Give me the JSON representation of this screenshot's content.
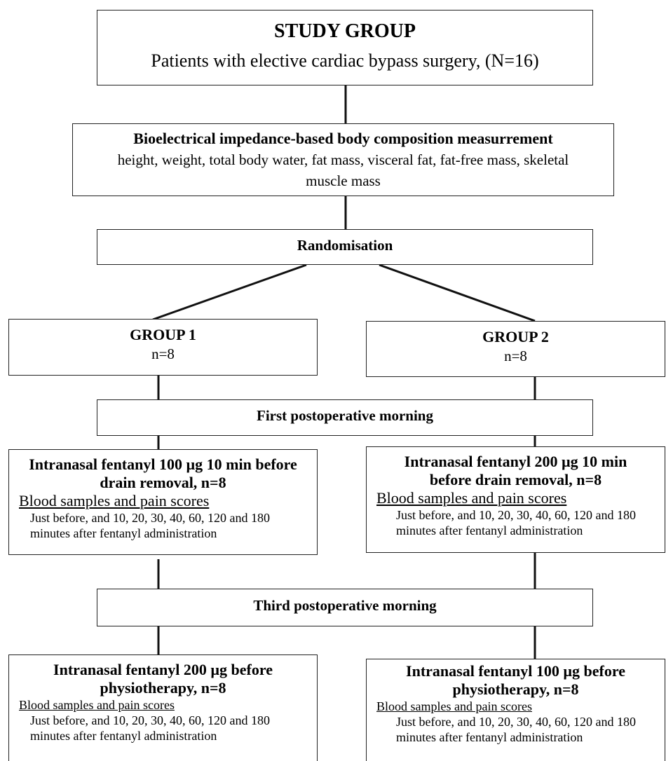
{
  "study_group": {
    "title": "STUDY GROUP",
    "text": "Patients with elective cardiac bypass surgery, (N=16)"
  },
  "measurement": {
    "title": "Bioelectrical impedance-based body composition measurrement",
    "text": "height, weight, total body water, fat mass, visceral fat, fat-free mass, skeletal muscle mass"
  },
  "randomisation": "Randomisation",
  "group_1": {
    "title": "GROUP 1",
    "n": "n=8"
  },
  "group_2": {
    "title": "GROUP 2",
    "n": "n=8"
  },
  "first_morning": "First postoperative morning",
  "group_1_first": {
    "title": "Intranasal fentanyl 100 µg 10 min before drain removal, n=8",
    "subtitle": "Blood samples and pain scores",
    "text": "Just before, and 10, 20, 30, 40, 60, 120 and 180 minutes after fentanyl administration"
  },
  "group_2_first": {
    "title": "Intranasal fentanyl 200 µg 10 min before drain removal, n=8",
    "subtitle": "Blood samples and pain scores",
    "text": "Just before, and 10, 20, 30, 40, 60, 120 and 180 minutes after fentanyl administration"
  },
  "third_morning": "Third postoperative morning",
  "group_1_third": {
    "title": "Intranasal fentanyl 200 µg before physiotherapy, n=8",
    "subtitle": "Blood samples and pain scores",
    "text": "Just before, and 10, 20, 30, 40, 60, 120 and 180 minutes after fentanyl administration"
  },
  "group_2_third": {
    "title": "Intranasal fentanyl 100 µg before physiotherapy, n=8",
    "subtitle": "Blood samples and pain scores",
    "text": "Just before, and 10, 20, 30, 40, 60, 120 and 180 minutes after fentanyl administration"
  }
}
